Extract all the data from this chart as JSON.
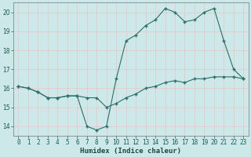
{
  "xlabel": "Humidex (Indice chaleur)",
  "x": [
    0,
    1,
    2,
    3,
    4,
    5,
    6,
    7,
    8,
    9,
    10,
    11,
    12,
    13,
    14,
    15,
    16,
    17,
    18,
    19,
    20,
    21,
    22,
    23
  ],
  "line1": [
    16.1,
    16.0,
    15.8,
    15.5,
    15.5,
    15.6,
    15.6,
    14.0,
    13.8,
    14.0,
    16.5,
    18.5,
    18.8,
    19.3,
    19.6,
    20.2,
    20.0,
    19.5,
    19.6,
    20.0,
    20.2,
    18.5,
    17.0,
    16.5
  ],
  "line2": [
    16.1,
    16.0,
    15.8,
    15.5,
    15.5,
    15.6,
    15.6,
    15.5,
    15.5,
    15.0,
    15.2,
    15.5,
    15.7,
    16.0,
    16.1,
    16.3,
    16.4,
    16.3,
    16.5,
    16.5,
    16.6,
    16.6,
    16.6,
    16.5
  ],
  "line_color": "#2a6e68",
  "bg_color": "#cce8e8",
  "grid_color": "#e8c8c8",
  "ylim": [
    13.5,
    20.5
  ],
  "xlim": [
    -0.5,
    23.5
  ],
  "yticks": [
    14,
    15,
    16,
    17,
    18,
    19,
    20
  ],
  "xticks": [
    0,
    1,
    2,
    3,
    4,
    5,
    6,
    7,
    8,
    9,
    10,
    11,
    12,
    13,
    14,
    15,
    16,
    17,
    18,
    19,
    20,
    21,
    22,
    23
  ],
  "xlabel_fontsize": 6.5,
  "tick_fontsize": 5.5
}
